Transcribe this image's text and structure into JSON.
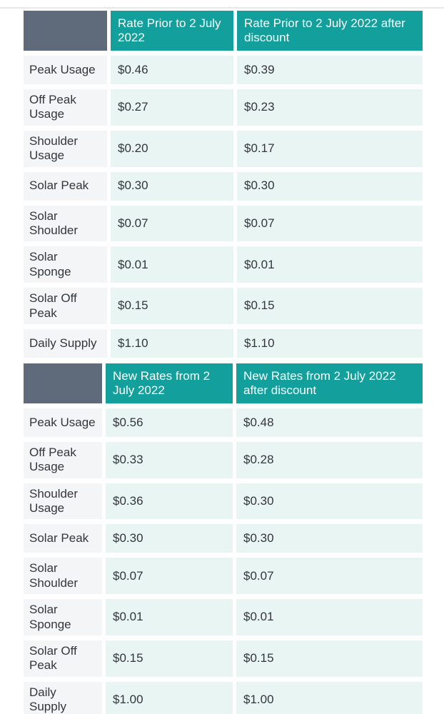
{
  "colors": {
    "teal": "#13a09d",
    "slate": "#5f6a7a",
    "mint": "#e8f5f3",
    "labelbg": "#f4f5f7",
    "text": "#33363b",
    "headertext": "#ffffff",
    "divider": "#e8e8e8"
  },
  "tables": [
    {
      "corner": "",
      "col_headers": [
        "Rate Prior to 2 July\n2022",
        "Rate Prior to 2 July 2022 after\ndiscount"
      ],
      "rows": [
        {
          "label": "Peak Usage",
          "rate": "$0.46",
          "discount_rate": "$0.39"
        },
        {
          "label": "Off Peak\nUsage",
          "rate": "$0.27",
          "discount_rate": "$0.23"
        },
        {
          "label": "Shoulder\nUsage",
          "rate": "$0.20",
          "discount_rate": "$0.17"
        },
        {
          "label": "Solar Peak",
          "rate": "$0.30",
          "discount_rate": "$0.30"
        },
        {
          "label": "Solar\nShoulder",
          "rate": "$0.07",
          "discount_rate": "$0.07"
        },
        {
          "label": "Solar\nSponge",
          "rate": "$0.01",
          "discount_rate": "$0.01"
        },
        {
          "label": "Solar Off\nPeak",
          "rate": "$0.15",
          "discount_rate": "$0.15"
        },
        {
          "label": "Daily Supply",
          "rate": "$1.10",
          "discount_rate": "$1.10"
        }
      ]
    },
    {
      "corner": "",
      "col_headers": [
        "New Rates from 2\nJuly 2022",
        "New Rates from 2 July 2022\nafter discount"
      ],
      "rows": [
        {
          "label": "Peak Usage",
          "rate": "$0.56",
          "discount_rate": "$0.48"
        },
        {
          "label": "Off Peak\nUsage",
          "rate": "$0.33",
          "discount_rate": "$0.28"
        },
        {
          "label": "Shoulder\nUsage",
          "rate": "$0.36",
          "discount_rate": "$0.30"
        },
        {
          "label": "Solar Peak",
          "rate": "$0.30",
          "discount_rate": "$0.30"
        },
        {
          "label": "Solar\nShoulder",
          "rate": "$0.07",
          "discount_rate": "$0.07"
        },
        {
          "label": "Solar\nSponge",
          "rate": "$0.01",
          "discount_rate": "$0.01"
        },
        {
          "label": "Solar Off\nPeak",
          "rate": "$0.15",
          "discount_rate": "$0.15"
        },
        {
          "label": "Daily\nSupply",
          "rate": "$1.00",
          "discount_rate": "$1.00"
        }
      ]
    }
  ]
}
